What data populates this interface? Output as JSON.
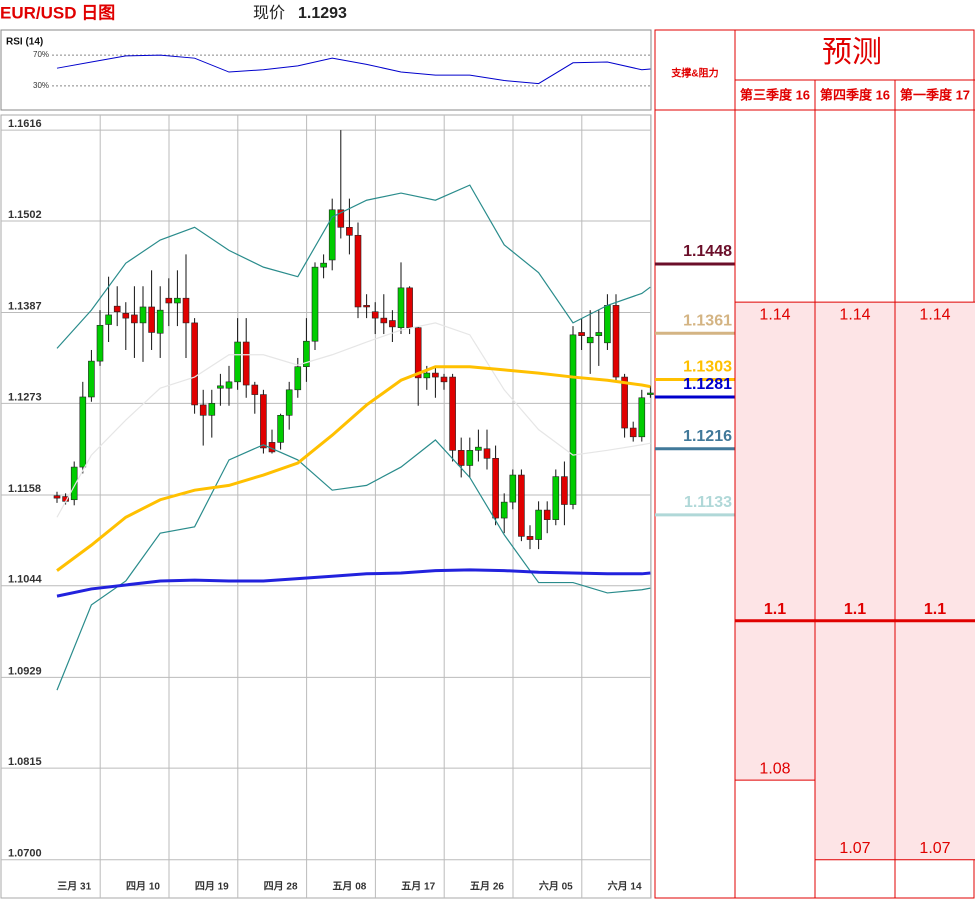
{
  "title": "EUR/USD 日图",
  "price_label": "现价",
  "price": 1.1293,
  "chart_data": [
    {
      "type": "candlestick",
      "categories": [
        null,
        null,
        "三月 31",
        null,
        null,
        null,
        null,
        null,
        null,
        null,
        "四月 10",
        null,
        null,
        null,
        null,
        null,
        null,
        null,
        "四月 19",
        null,
        null,
        null,
        null,
        null,
        null,
        null,
        "四月 28",
        null,
        null,
        null,
        null,
        null,
        null,
        null,
        "五月 08",
        null,
        null,
        null,
        null,
        null,
        null,
        null,
        "五月 17",
        null,
        null,
        null,
        null,
        null,
        null,
        null,
        "五月 26",
        null,
        null,
        null,
        null,
        null,
        null,
        null,
        "六月 05",
        null,
        null,
        null,
        null,
        null,
        null,
        null,
        "六月 14",
        null,
        null,
        null
      ],
      "open": [
        1.1157,
        1.1156,
        1.1152,
        1.1193,
        1.1281,
        1.1326,
        1.1372,
        1.1395,
        1.1386,
        1.1384,
        1.1374,
        1.1394,
        1.1361,
        1.1405,
        1.1399,
        1.1405,
        1.1374,
        1.1271,
        1.1258,
        1.1292,
        1.1292,
        1.13,
        1.135,
        1.1296,
        1.1284,
        1.1224,
        1.1224,
        1.1258,
        1.129,
        1.1319,
        1.1351,
        1.1444,
        1.1453,
        1.1516,
        1.1494,
        1.1484,
        1.1396,
        1.1388,
        1.138,
        1.1377,
        1.1368,
        1.1418,
        1.1368,
        1.1305,
        1.1311,
        1.1306,
        1.1306,
        1.1214,
        1.1195,
        1.1214,
        1.1216,
        1.1204,
        1.1129,
        1.1149,
        1.1183,
        1.1106,
        1.1102,
        1.1139,
        1.1127,
        1.1181,
        1.1146,
        1.1362,
        1.1349,
        1.1358,
        1.1349,
        1.1396,
        1.1306,
        1.1242,
        1.1231,
        1.1284
      ],
      "high": [
        1.1162,
        1.116,
        1.12,
        1.13,
        1.134,
        1.139,
        1.1432,
        1.142,
        1.14,
        1.142,
        1.142,
        1.144,
        1.142,
        1.143,
        1.144,
        1.146,
        1.138,
        1.129,
        1.129,
        1.131,
        1.132,
        1.138,
        1.138,
        1.13,
        1.129,
        1.124,
        1.126,
        1.13,
        1.133,
        1.138,
        1.145,
        1.146,
        1.153,
        1.1616,
        1.153,
        1.15,
        1.141,
        1.14,
        1.141,
        1.139,
        1.145,
        1.142,
        1.137,
        1.132,
        1.132,
        1.131,
        1.131,
        1.123,
        1.123,
        1.124,
        1.124,
        1.122,
        1.116,
        1.119,
        1.119,
        1.112,
        1.115,
        1.115,
        1.119,
        1.12,
        1.137,
        1.138,
        1.139,
        1.139,
        1.141,
        1.141,
        1.131,
        1.125,
        1.129,
        1.1295
      ],
      "low": [
        1.1148,
        1.1146,
        1.1145,
        1.1185,
        1.1275,
        1.132,
        1.135,
        1.137,
        1.134,
        1.133,
        1.1325,
        1.134,
        1.133,
        1.137,
        1.137,
        1.133,
        1.126,
        1.122,
        1.123,
        1.127,
        1.127,
        1.129,
        1.128,
        1.126,
        1.121,
        1.121,
        1.1215,
        1.124,
        1.128,
        1.13,
        1.134,
        1.143,
        1.144,
        1.148,
        1.146,
        1.138,
        1.138,
        1.136,
        1.136,
        1.135,
        1.136,
        1.136,
        1.127,
        1.129,
        1.128,
        1.129,
        1.12,
        1.118,
        1.118,
        1.12,
        1.119,
        1.112,
        1.111,
        1.114,
        1.11,
        1.109,
        1.109,
        1.111,
        1.112,
        1.112,
        1.114,
        1.134,
        1.131,
        1.132,
        1.134,
        1.13,
        1.123,
        1.1225,
        1.1225,
        1.128
      ],
      "close": [
        1.1154,
        1.115,
        1.1193,
        1.1281,
        1.1326,
        1.1371,
        1.1384,
        1.1388,
        1.138,
        1.1374,
        1.1394,
        1.1362,
        1.139,
        1.1399,
        1.1405,
        1.1374,
        1.1271,
        1.1258,
        1.1273,
        1.1295,
        1.13,
        1.135,
        1.1296,
        1.1284,
        1.1217,
        1.1212,
        1.1258,
        1.129,
        1.1319,
        1.1351,
        1.1444,
        1.1449,
        1.1516,
        1.1494,
        1.1484,
        1.1394,
        1.1394,
        1.138,
        1.1374,
        1.1369,
        1.1418,
        1.1368,
        1.1305,
        1.1311,
        1.1306,
        1.13,
        1.1214,
        1.1195,
        1.1214,
        1.1218,
        1.1204,
        1.1129,
        1.1149,
        1.1183,
        1.1106,
        1.1102,
        1.1139,
        1.1127,
        1.1181,
        1.1146,
        1.1359,
        1.1358,
        1.1356,
        1.1362,
        1.1396,
        1.1306,
        1.1242,
        1.1231,
        1.128,
        1.1286
      ],
      "up_color": "#00cc00",
      "down_color": "#e00000",
      "lines": [
        {
          "color": "#e6e6e6",
          "x": [
            0,
            4,
            8,
            12,
            16,
            20,
            24,
            28,
            32,
            36,
            40,
            44,
            48,
            52,
            56,
            60,
            64,
            68,
            69
          ],
          "values": [
            1.113,
            1.1208,
            1.1252,
            1.1292,
            1.1306,
            1.1334,
            1.1334,
            1.1321,
            1.1334,
            1.135,
            1.1365,
            1.1374,
            1.1359,
            1.129,
            1.124,
            1.1208,
            1.1214,
            1.1221,
            1.1223
          ]
        },
        {
          "color": "#2a8c8c",
          "x": [
            0,
            4,
            8,
            12,
            16,
            20,
            24,
            28,
            32,
            36,
            40,
            44,
            48,
            52,
            56,
            60,
            64,
            68,
            69
          ],
          "values": [
            1.1342,
            1.139,
            1.1449,
            1.1478,
            1.1494,
            1.1465,
            1.1444,
            1.1432,
            1.1507,
            1.1528,
            1.1537,
            1.1528,
            1.1547,
            1.1472,
            1.1437,
            1.1374,
            1.1396,
            1.1411,
            1.1419
          ]
        },
        {
          "color": "#2a8c8c",
          "x": [
            0,
            4,
            8,
            12,
            16,
            20,
            24,
            28,
            32,
            36,
            40,
            44,
            48,
            52,
            56,
            60,
            64,
            68,
            69
          ],
          "values": [
            1.0913,
            1.102,
            1.105,
            1.111,
            1.1118,
            1.1202,
            1.1221,
            1.1202,
            1.1164,
            1.117,
            1.1193,
            1.1227,
            1.118,
            1.1108,
            1.1048,
            1.1048,
            1.1035,
            1.1039,
            1.1041
          ]
        },
        {
          "color": "#ffc000",
          "x": [
            0,
            4,
            8,
            12,
            16,
            20,
            24,
            28,
            32,
            36,
            40,
            44,
            48,
            52,
            56,
            60,
            64,
            68,
            69
          ],
          "values": [
            1.1063,
            1.1095,
            1.113,
            1.1152,
            1.1164,
            1.117,
            1.1183,
            1.1198,
            1.1233,
            1.1271,
            1.1302,
            1.1319,
            1.1319,
            1.1315,
            1.1311,
            1.1306,
            1.1302,
            1.1296,
            1.1294
          ]
        },
        {
          "color": "#2222dd",
          "x": [
            0,
            4,
            8,
            12,
            16,
            20,
            24,
            28,
            32,
            36,
            40,
            44,
            48,
            52,
            56,
            60,
            64,
            68,
            69
          ],
          "values": [
            1.1031,
            1.104,
            1.1045,
            1.105,
            1.1051,
            1.105,
            1.105,
            1.1053,
            1.1056,
            1.1059,
            1.106,
            1.1063,
            1.1064,
            1.1063,
            1.1061,
            1.106,
            1.1059,
            1.1059,
            1.106
          ]
        }
      ],
      "ylim": [
        1.0652,
        1.1635
      ],
      "yticks": [
        1.1616,
        1.1502,
        1.1387,
        1.1273,
        1.1158,
        1.1044,
        1.0929,
        1.0815,
        {
          "value": 1.07,
          "label": "1.0700"
        }
      ],
      "grid": true
    },
    {
      "type": "line",
      "title": "RSI (14)",
      "color": "#0000cc",
      "x": [
        0,
        4,
        8,
        12,
        16,
        20,
        24,
        28,
        32,
        36,
        40,
        44,
        48,
        52,
        56,
        60,
        64,
        68,
        69
      ],
      "values": [
        53,
        61,
        69,
        70,
        66,
        48,
        51,
        56,
        66,
        58,
        48,
        44,
        44,
        37,
        33,
        60,
        61,
        51,
        52
      ],
      "ylim": [
        0,
        100
      ],
      "yticks": [
        {
          "value": 70,
          "label": "70%"
        },
        {
          "value": 30,
          "label": "30%"
        }
      ],
      "grid": true
    }
  ],
  "support_resistance": {
    "title": "支撑&阻力",
    "levels": [
      {
        "value": 1.1448,
        "color": "#6b0f2a"
      },
      {
        "value": 1.1361,
        "color": "#d4b483"
      },
      {
        "value": 1.1303,
        "color": "#ffc000"
      },
      {
        "value": 1.1281,
        "color": "#0000cc"
      },
      {
        "value": 1.1216,
        "color": "#41799a"
      },
      {
        "value": 1.1133,
        "color": "#b0d8d8"
      }
    ]
  },
  "forecast": {
    "title": "预测",
    "columns": [
      {
        "label": "第三季度 16",
        "high": 1.14,
        "mid": 1.1,
        "low": 1.08
      },
      {
        "label": "第四季度 16",
        "high": 1.14,
        "mid": 1.1,
        "low": 1.07
      },
      {
        "label": "第一季度 17",
        "high": 1.14,
        "mid": 1.1,
        "low": 1.07
      }
    ]
  }
}
